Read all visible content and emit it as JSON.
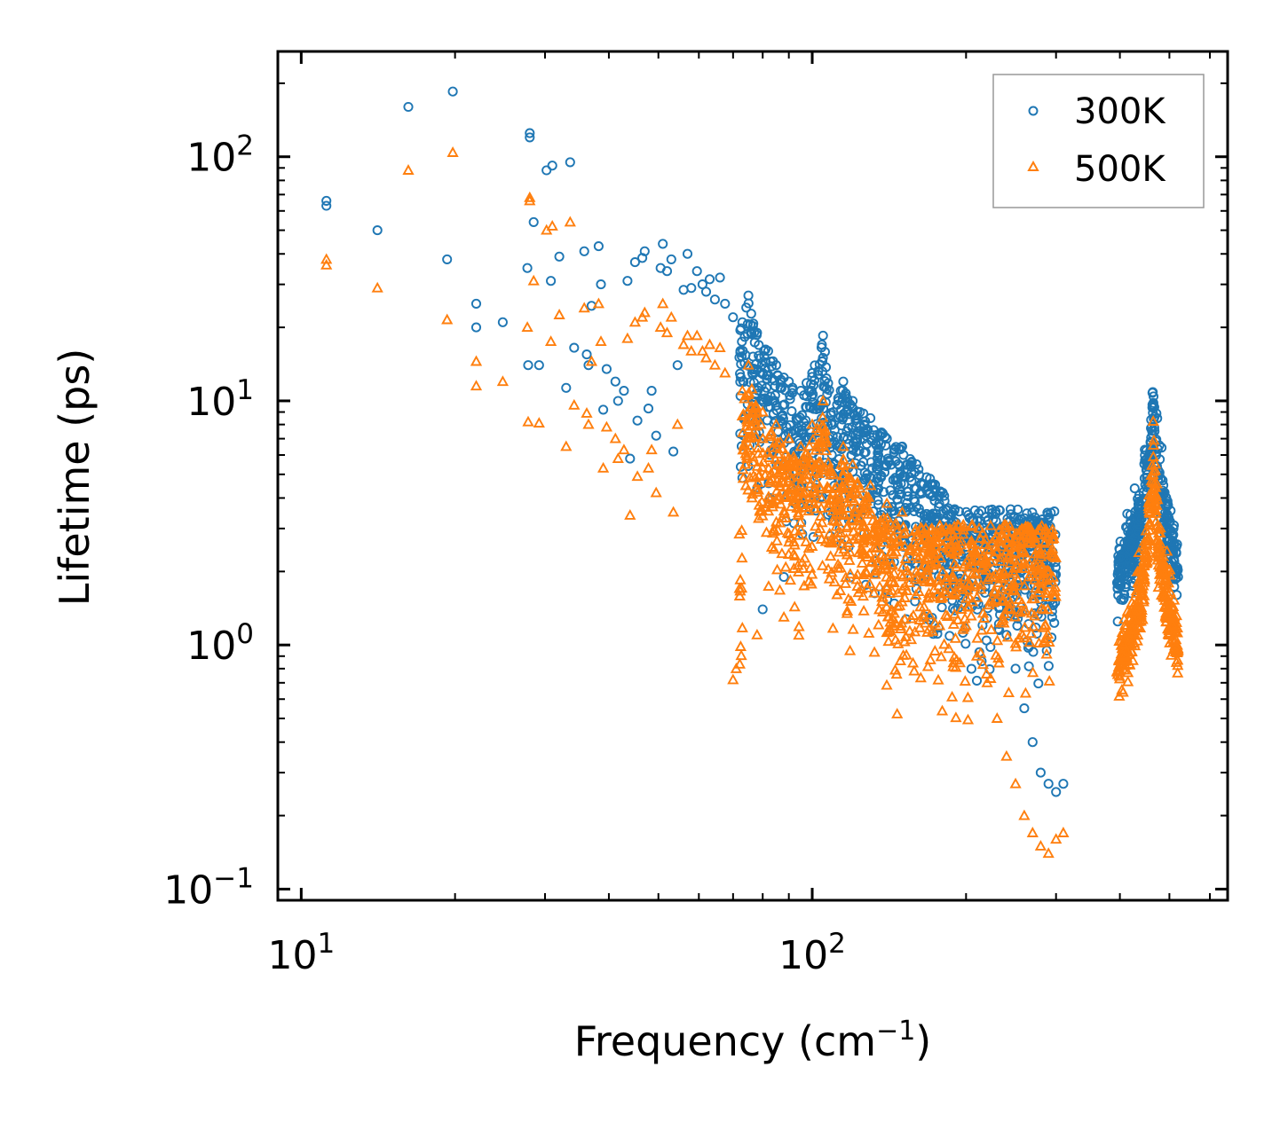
{
  "chart_data": {
    "type": "scatter",
    "title": "",
    "xlabel": "Frequency (cm",
    "xlabel_sup": "−1",
    "xlabel_suffix": ")",
    "ylabel": "Lifetime (ps)",
    "xscale": "log",
    "yscale": "log",
    "xlim": [
      9,
      650
    ],
    "ylim": [
      0.09,
      270
    ],
    "x_ticks": [
      {
        "value": 10,
        "base": "10",
        "exp": "1"
      },
      {
        "value": 100,
        "base": "10",
        "exp": "2"
      }
    ],
    "y_ticks": [
      {
        "value": 0.1,
        "base": "10",
        "exp": "−1"
      },
      {
        "value": 1,
        "base": "10",
        "exp": "0"
      },
      {
        "value": 10,
        "base": "10",
        "exp": "1"
      },
      {
        "value": 100,
        "base": "10",
        "exp": "2"
      }
    ],
    "legend_position": "top-right",
    "colors": {
      "series_300K": "#1f77b4",
      "series_500K": "#ff7f0e",
      "axis": "#000000",
      "legend_frame": "#999999"
    },
    "series": [
      {
        "name": "300K",
        "marker": "circle",
        "points": [
          [
            11.2,
            66
          ],
          [
            11.2,
            63
          ],
          [
            14.1,
            50
          ],
          [
            16.2,
            160
          ],
          [
            19.3,
            38
          ],
          [
            19.8,
            185
          ],
          [
            22.0,
            25
          ],
          [
            22.0,
            20
          ],
          [
            24.8,
            21
          ],
          [
            28.0,
            125
          ],
          [
            28.0,
            120
          ],
          [
            28.5,
            54
          ],
          [
            27.7,
            35
          ],
          [
            27.8,
            14
          ],
          [
            29.2,
            14
          ],
          [
            30.2,
            88
          ],
          [
            31.0,
            92
          ],
          [
            30.8,
            31
          ],
          [
            32.0,
            39
          ],
          [
            33.0,
            11.3
          ],
          [
            33.6,
            95
          ],
          [
            34.2,
            16.5
          ],
          [
            35.8,
            41
          ],
          [
            36.2,
            15.5
          ],
          [
            36.5,
            14
          ],
          [
            37.0,
            24.5
          ],
          [
            38.2,
            43
          ],
          [
            38.6,
            30
          ],
          [
            39.0,
            9.2
          ],
          [
            39.6,
            13.5
          ],
          [
            41.2,
            12
          ],
          [
            41.7,
            10
          ],
          [
            42.8,
            11
          ],
          [
            43.5,
            31
          ],
          [
            44.0,
            5.8
          ],
          [
            45.0,
            37
          ],
          [
            45.5,
            8.3
          ],
          [
            46.5,
            38.5
          ],
          [
            47.0,
            41
          ],
          [
            47.8,
            9.3
          ],
          [
            48.5,
            11
          ],
          [
            49.5,
            7.2
          ],
          [
            50.5,
            35
          ],
          [
            51.0,
            44
          ],
          [
            52.0,
            34
          ],
          [
            53.0,
            38
          ],
          [
            53.5,
            6.2
          ],
          [
            54.5,
            14
          ],
          [
            56.0,
            28.5
          ],
          [
            57.0,
            40
          ],
          [
            58.0,
            29
          ],
          [
            59.5,
            34
          ],
          [
            61.0,
            30
          ],
          [
            62.0,
            28
          ],
          [
            63.0,
            31.5
          ],
          [
            64.5,
            26
          ],
          [
            66.0,
            32
          ],
          [
            67.5,
            25
          ],
          [
            70.0,
            22
          ],
          [
            73.0,
            21
          ],
          [
            75.0,
            27
          ],
          [
            78.0,
            19
          ],
          [
            80.0,
            1.4
          ],
          [
            82.0,
            16
          ],
          [
            85.0,
            14
          ],
          [
            88.0,
            1.9
          ],
          [
            90.0,
            12
          ],
          [
            95.0,
            11
          ],
          [
            100.0,
            13
          ],
          [
            105.0,
            18.5
          ],
          [
            110.0,
            9
          ],
          [
            115.0,
            12
          ],
          [
            120.0,
            10
          ],
          [
            130.0,
            8.5
          ],
          [
            140.0,
            7
          ],
          [
            150.0,
            6.5
          ],
          [
            160.0,
            5.5
          ],
          [
            170.0,
            4.8
          ],
          [
            180.0,
            4.2
          ],
          [
            190.0,
            3.6
          ],
          [
            200.0,
            3
          ],
          [
            210.0,
            2.4
          ],
          [
            220.0,
            2
          ],
          [
            230.0,
            1.5
          ],
          [
            240.0,
            1.1
          ],
          [
            250.0,
            0.8
          ],
          [
            260.0,
            0.55
          ],
          [
            270.0,
            0.4
          ],
          [
            280.0,
            0.3
          ],
          [
            290.0,
            0.27
          ],
          [
            300.0,
            0.25
          ],
          [
            310.0,
            0.27
          ],
          [
            395.0,
            1.8
          ],
          [
            410.0,
            2.2
          ],
          [
            425.0,
            2.6
          ],
          [
            440.0,
            3.5
          ],
          [
            452.0,
            5.2
          ],
          [
            460.0,
            6.8
          ],
          [
            465.0,
            9.6
          ],
          [
            475.0,
            5.2
          ],
          [
            490.0,
            3.3
          ],
          [
            505.0,
            2.6
          ],
          [
            515.0,
            2.1
          ],
          [
            520.0,
            1.9
          ]
        ]
      },
      {
        "name": "500K",
        "marker": "triangle",
        "points": [
          [
            11.2,
            38
          ],
          [
            11.2,
            36
          ],
          [
            14.1,
            29
          ],
          [
            16.2,
            88
          ],
          [
            19.3,
            21.5
          ],
          [
            19.8,
            104
          ],
          [
            22.0,
            14.5
          ],
          [
            22.0,
            11.5
          ],
          [
            24.8,
            12
          ],
          [
            27.7,
            20
          ],
          [
            27.8,
            8.2
          ],
          [
            28.0,
            68
          ],
          [
            28.0,
            66
          ],
          [
            28.5,
            31
          ],
          [
            29.2,
            8.1
          ],
          [
            30.2,
            50
          ],
          [
            31.0,
            52
          ],
          [
            30.8,
            17.5
          ],
          [
            32.0,
            22.5
          ],
          [
            33.0,
            6.5
          ],
          [
            33.6,
            54
          ],
          [
            34.2,
            9.6
          ],
          [
            35.8,
            24
          ],
          [
            36.2,
            8.9
          ],
          [
            36.5,
            8
          ],
          [
            37.0,
            14.5
          ],
          [
            38.2,
            25
          ],
          [
            38.6,
            17.5
          ],
          [
            39.0,
            5.3
          ],
          [
            39.6,
            7.8
          ],
          [
            41.2,
            7
          ],
          [
            41.7,
            5.8
          ],
          [
            42.8,
            6.3
          ],
          [
            43.5,
            18
          ],
          [
            44.0,
            3.4
          ],
          [
            45.0,
            21
          ],
          [
            45.5,
            4.9
          ],
          [
            46.5,
            22
          ],
          [
            47.0,
            23
          ],
          [
            47.8,
            5.3
          ],
          [
            48.5,
            6.3
          ],
          [
            49.5,
            4.2
          ],
          [
            50.5,
            20
          ],
          [
            51.0,
            25
          ],
          [
            52.0,
            19
          ],
          [
            53.0,
            22
          ],
          [
            53.5,
            3.5
          ],
          [
            54.5,
            8
          ],
          [
            56.0,
            17
          ],
          [
            57.0,
            18.5
          ],
          [
            58.0,
            16
          ],
          [
            59.5,
            18.5
          ],
          [
            61.0,
            16
          ],
          [
            62.0,
            15
          ],
          [
            63.0,
            17
          ],
          [
            64.5,
            14
          ],
          [
            66.0,
            16.5
          ],
          [
            67.5,
            13
          ],
          [
            70.0,
            0.72
          ],
          [
            71.0,
            0.8
          ],
          [
            73.0,
            11
          ],
          [
            75.0,
            14
          ],
          [
            78.0,
            1.1
          ],
          [
            80.0,
            9
          ],
          [
            85.0,
            8
          ],
          [
            88.0,
            1.3
          ],
          [
            90.0,
            7
          ],
          [
            95.0,
            6.5
          ],
          [
            100.0,
            8
          ],
          [
            105.0,
            10
          ],
          [
            110.0,
            5
          ],
          [
            115.0,
            6.5
          ],
          [
            120.0,
            5.5
          ],
          [
            130.0,
            4.5
          ],
          [
            140.0,
            3.8
          ],
          [
            150.0,
            3.5
          ],
          [
            160.0,
            2.8
          ],
          [
            170.0,
            2.4
          ],
          [
            180.0,
            2
          ],
          [
            190.0,
            1.6
          ],
          [
            200.0,
            1.2
          ],
          [
            210.0,
            0.9
          ],
          [
            220.0,
            0.7
          ],
          [
            230.0,
            0.5
          ],
          [
            240.0,
            0.35
          ],
          [
            250.0,
            0.27
          ],
          [
            260.0,
            0.2
          ],
          [
            270.0,
            0.17
          ],
          [
            280.0,
            0.15
          ],
          [
            290.0,
            0.14
          ],
          [
            300.0,
            0.16
          ],
          [
            310.0,
            0.17
          ],
          [
            395.0,
            0.78
          ],
          [
            410.0,
            0.95
          ],
          [
            425.0,
            1.2
          ],
          [
            440.0,
            1.6
          ],
          [
            452.0,
            2.6
          ],
          [
            460.0,
            3.8
          ],
          [
            465.0,
            5.9
          ],
          [
            475.0,
            2.6
          ],
          [
            490.0,
            1.7
          ],
          [
            505.0,
            1.3
          ],
          [
            515.0,
            1.05
          ],
          [
            520.0,
            0.95
          ]
        ]
      }
    ]
  }
}
